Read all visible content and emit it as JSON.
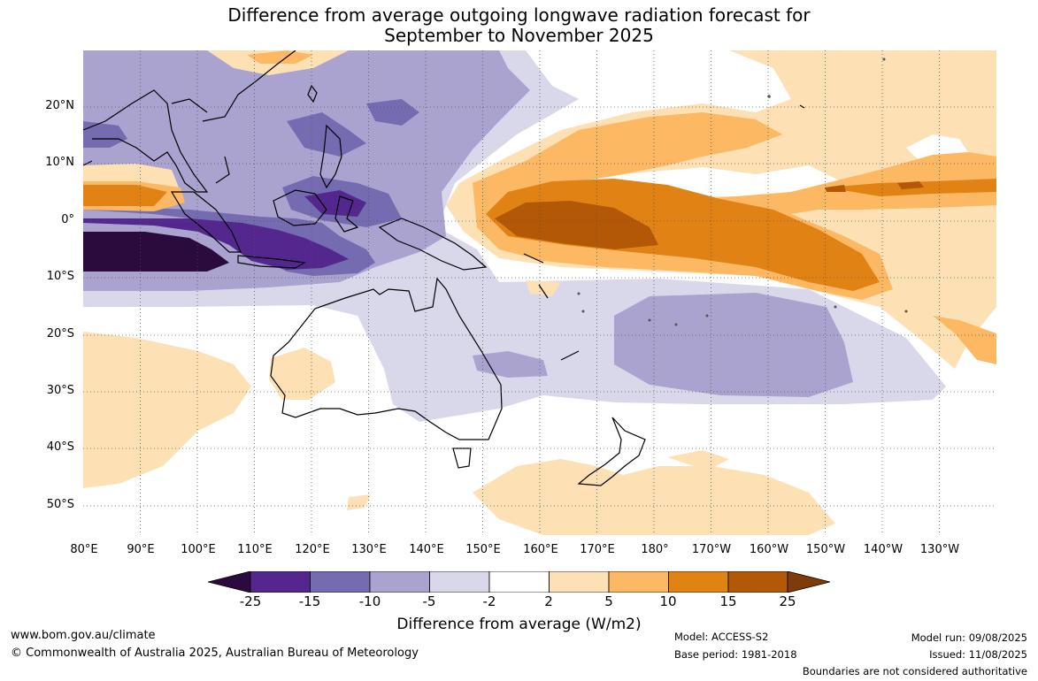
{
  "title_line1": "Difference from average outgoing longwave radiation forecast for",
  "title_line2": "September to November 2025",
  "map": {
    "region": "Australia, Maritime Continent and western Pacific",
    "lat_labels": [
      "20°N",
      "10°N",
      "0°",
      "10°S",
      "20°S",
      "30°S",
      "40°S",
      "50°S"
    ],
    "lon_labels": [
      "80°E",
      "90°E",
      "100°E",
      "110°E",
      "120°E",
      "130°E",
      "140°E",
      "150°E",
      "160°E",
      "170°E",
      "180°",
      "170°W",
      "160°W",
      "150°W",
      "140°W",
      "130°W"
    ],
    "gridlines": "dotted"
  },
  "colorbar": {
    "title": "Difference from average (W/m2)",
    "ticks": [
      "-25",
      "-15",
      "-10",
      "-5",
      "-2",
      "2",
      "5",
      "10",
      "15",
      "25"
    ],
    "colors": [
      "#2b0a3d",
      "#54278f",
      "#756bb1",
      "#aaa3d0",
      "#d9d8eb",
      "#ffffff",
      "#fde0b4",
      "#fdb863",
      "#e08214",
      "#b35806",
      "#7f3b08"
    ]
  },
  "footer": {
    "website": "www.bom.gov.au/climate",
    "copyright": "© Commonwealth of Australia 2025, Australian Bureau of Meteorology",
    "model": "Model: ACCESS-S2",
    "base_period": "Base period: 1981-2018",
    "model_run": "Model run: 09/08/2025",
    "issued": "Issued: 11/08/2025",
    "boundaries": "Boundaries are not considered authoritative"
  }
}
